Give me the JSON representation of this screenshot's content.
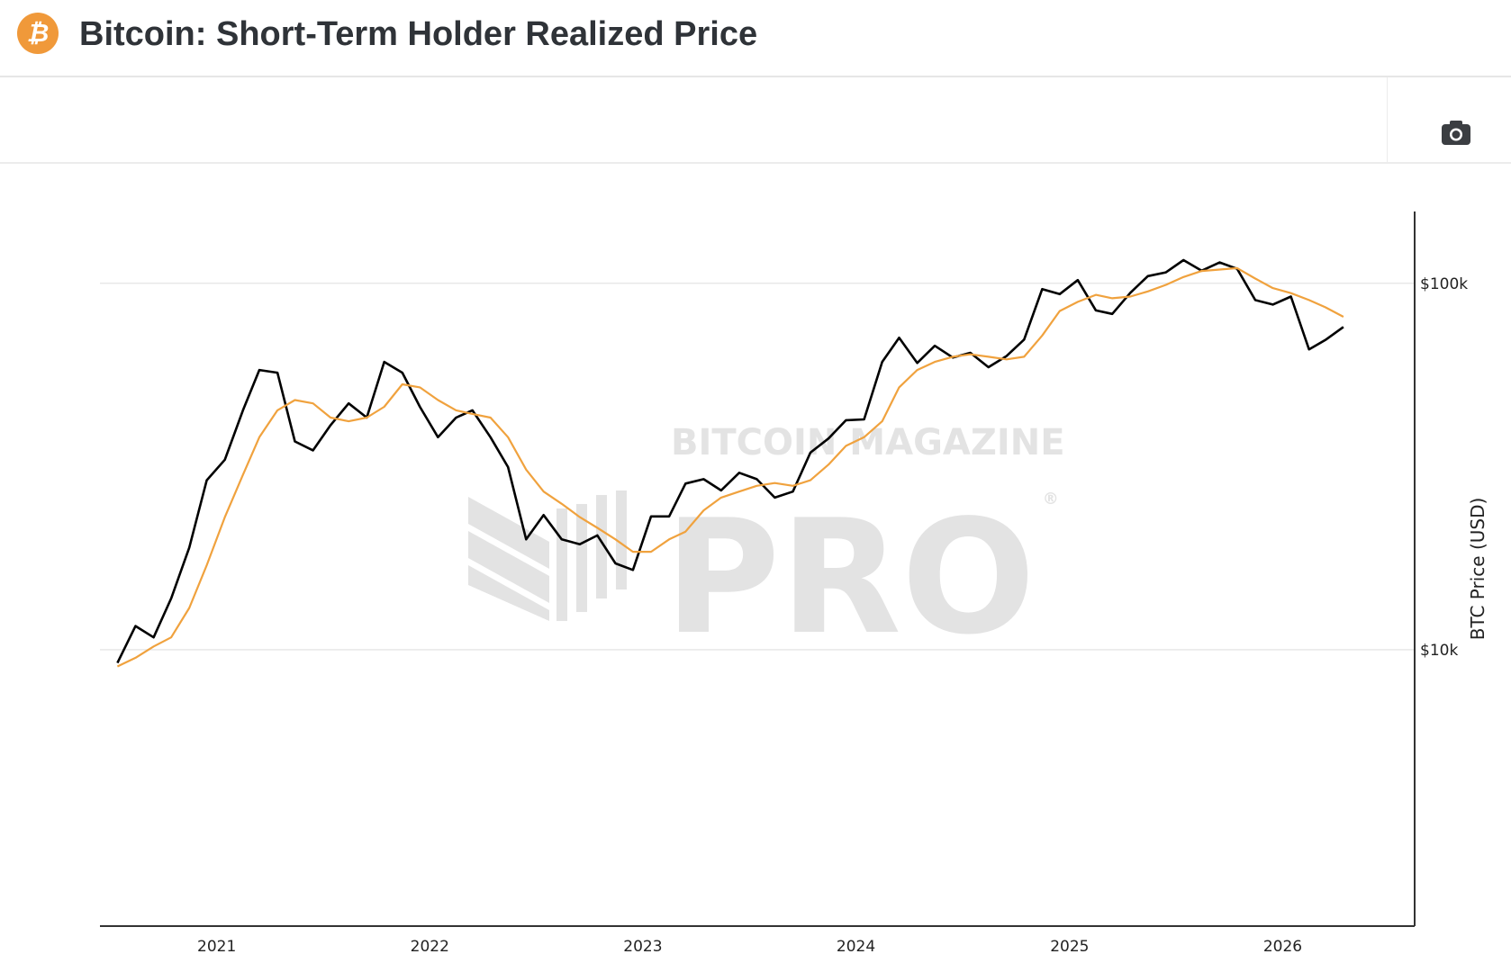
{
  "header": {
    "title": "Bitcoin: Short-Term Holder Realized Price",
    "logo_icon": "bitcoin-icon",
    "logo_glyph": "₿"
  },
  "toolbar": {
    "screenshot_icon": "camera-icon"
  },
  "watermark": {
    "line1": "BITCOIN MAGAZINE",
    "line2": "PRO",
    "mark": "®"
  },
  "colors": {
    "price": "#000000",
    "sth_realized": "#f0a23e",
    "grid": "#e8e8e8",
    "brand": "#f0993a"
  },
  "chart_data": {
    "type": "line",
    "title": "Bitcoin: Short-Term Holder Realized Price",
    "xlabel": "",
    "ylabel": "BTC Price (USD)",
    "y_scale": "log",
    "ylim": [
      1760,
      157000
    ],
    "xlim": [
      "2020-06-15",
      "2026-08-15"
    ],
    "x_ticks": [
      {
        "label": "2021",
        "date": "2021-01-01"
      },
      {
        "label": "2022",
        "date": "2022-01-01"
      },
      {
        "label": "2023",
        "date": "2023-01-01"
      },
      {
        "label": "2024",
        "date": "2024-01-01"
      },
      {
        "label": "2025",
        "date": "2025-01-01"
      },
      {
        "label": "2026",
        "date": "2026-01-01"
      }
    ],
    "y_ticks": [
      {
        "label": "$10k",
        "value": 10000
      },
      {
        "label": "$100k",
        "value": 100000
      }
    ],
    "grid": true,
    "legend": "none",
    "x": [
      "2020-07",
      "2020-08",
      "2020-09",
      "2020-10",
      "2020-11",
      "2020-12",
      "2021-01",
      "2021-02",
      "2021-03",
      "2021-04",
      "2021-05",
      "2021-06",
      "2021-07",
      "2021-08",
      "2021-09",
      "2021-10",
      "2021-11",
      "2021-12",
      "2022-01",
      "2022-02",
      "2022-03",
      "2022-04",
      "2022-05",
      "2022-06",
      "2022-07",
      "2022-08",
      "2022-09",
      "2022-10",
      "2022-11",
      "2022-12",
      "2023-01",
      "2023-02",
      "2023-03",
      "2023-04",
      "2023-05",
      "2023-06",
      "2023-07",
      "2023-08",
      "2023-09",
      "2023-10",
      "2023-11",
      "2023-12",
      "2024-01",
      "2024-02",
      "2024-03",
      "2024-04",
      "2024-05",
      "2024-06",
      "2024-07",
      "2024-08",
      "2024-09",
      "2024-10",
      "2024-11",
      "2024-12",
      "2025-01",
      "2025-02",
      "2025-03",
      "2025-04",
      "2025-05",
      "2025-06",
      "2025-07",
      "2025-08",
      "2025-09",
      "2025-10",
      "2025-11",
      "2025-12",
      "2026-01",
      "2026-02",
      "2026-03",
      "2026-04"
    ],
    "series": [
      {
        "key": "price",
        "values": [
          9200,
          11600,
          10800,
          13800,
          19000,
          29000,
          33000,
          45000,
          58000,
          57000,
          37000,
          35000,
          41000,
          47000,
          43000,
          61000,
          57000,
          46000,
          38000,
          43000,
          45000,
          38000,
          31500,
          20000,
          23300,
          20000,
          19400,
          20500,
          17200,
          16500,
          23100,
          23100,
          28400,
          29200,
          27200,
          30400,
          29200,
          26000,
          27000,
          34500,
          37700,
          42300,
          42500,
          61000,
          71000,
          60600,
          67500,
          62700,
          64600,
          59000,
          63300,
          70200,
          96400,
          93400,
          102000,
          84300,
          82500,
          94200,
          104600,
          107100,
          115700,
          108200,
          114000,
          109500,
          90000,
          87500,
          92000,
          66000,
          70000,
          76000
        ]
      },
      {
        "key": "sth_realized",
        "values": [
          9000,
          9500,
          10200,
          10800,
          13000,
          17000,
          23000,
          30000,
          38000,
          45000,
          48000,
          47000,
          43000,
          42000,
          43000,
          46000,
          53000,
          52000,
          48000,
          45000,
          44000,
          43000,
          38000,
          31000,
          27000,
          25000,
          23000,
          21500,
          20000,
          18500,
          18500,
          20000,
          21000,
          24000,
          26000,
          27000,
          28000,
          28500,
          28000,
          29000,
          32000,
          36000,
          38000,
          42000,
          52000,
          58000,
          61000,
          63000,
          64000,
          63000,
          62000,
          63000,
          72000,
          84000,
          89000,
          93000,
          91000,
          92000,
          95000,
          99000,
          104000,
          108000,
          109000,
          110000,
          103000,
          97000,
          94000,
          90000,
          86000,
          81000
        ]
      }
    ]
  }
}
